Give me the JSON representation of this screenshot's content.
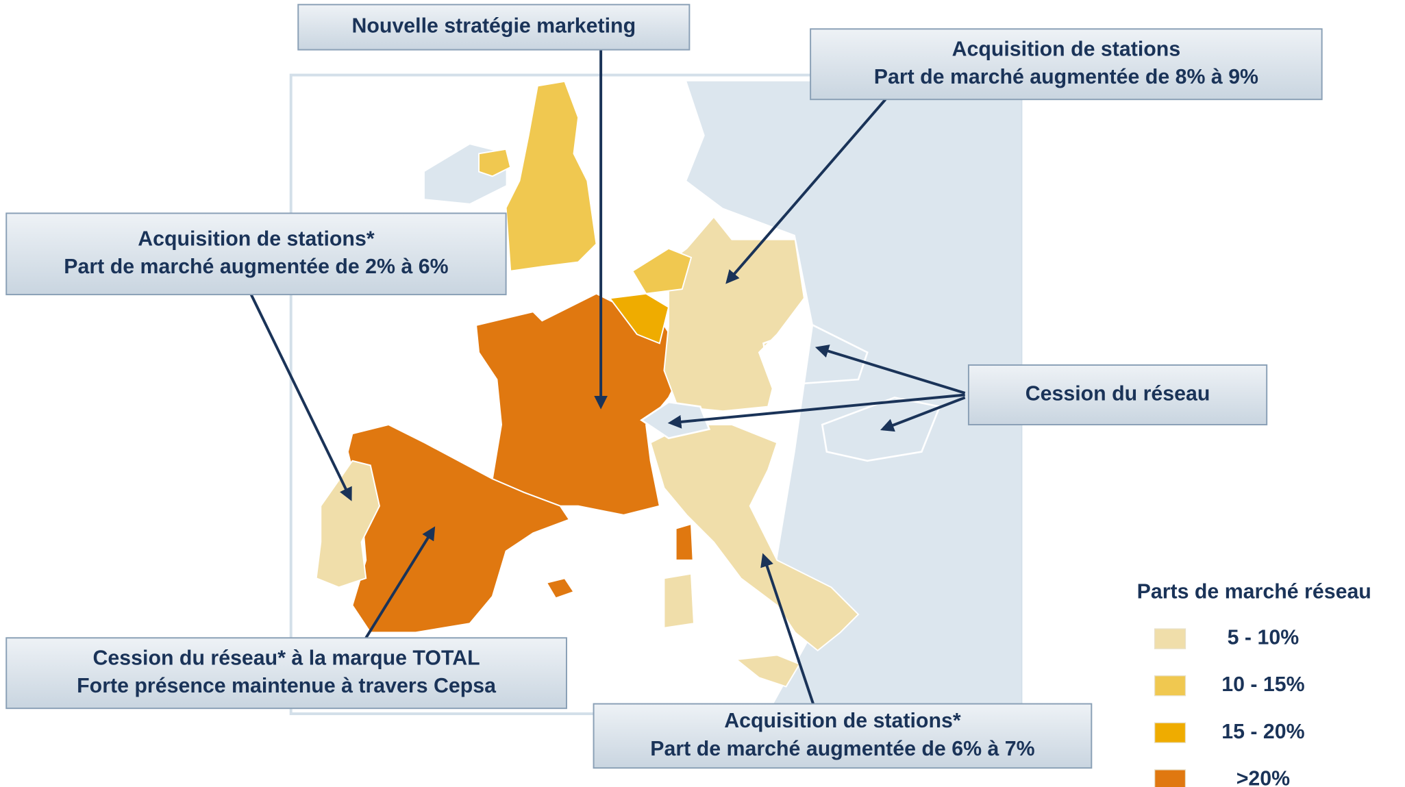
{
  "callouts": [
    {
      "lines": [
        "Nouvelle stratégie marketing"
      ]
    },
    {
      "lines": [
        "Acquisition de stations",
        "Part de marché augmentée de 8% à 9%"
      ]
    },
    {
      "lines": [
        "Acquisition de stations*",
        "Part de marché augmentée de 2% à 6%"
      ]
    },
    {
      "lines": [
        "Cession du réseau"
      ]
    },
    {
      "lines": [
        "Cession du réseau* à la marque TOTAL",
        "Forte présence maintenue à travers Cepsa"
      ]
    },
    {
      "lines": [
        "Acquisition de stations*",
        "Part de marché augmentée de 6% à 7%"
      ]
    }
  ],
  "legend": {
    "title": "Parts de marché réseau",
    "items": [
      {
        "label": "5 - 10%",
        "color": "#f0deaa"
      },
      {
        "label": "10 - 15%",
        "color": "#f0c850"
      },
      {
        "label": "15 - 20%",
        "color": "#efac00"
      },
      {
        "label": ">20%",
        "color": "#e07810"
      }
    ]
  }
}
